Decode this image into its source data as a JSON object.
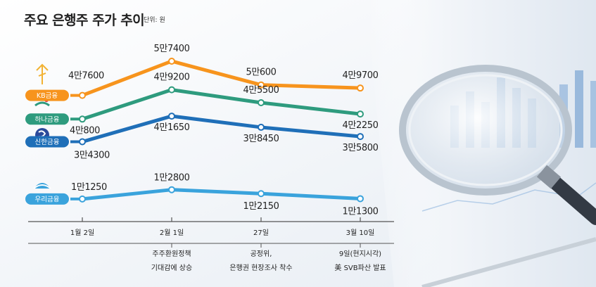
{
  "title": "주요 은행주 주가 추이",
  "unit": "단위: 원",
  "colors": {
    "kb": "#f7941d",
    "hana": "#2e9b7e",
    "shinhan": "#1f6fb8",
    "woori": "#3aa3dc"
  },
  "chart_data": {
    "type": "line",
    "categories": [
      "1월 2일",
      "2월 1일",
      "27일",
      "3월 10일"
    ],
    "series": [
      {
        "name": "KB금융",
        "values": [
          47600,
          57400,
          50600,
          49700
        ],
        "labels": [
          "4만7600",
          "5만7400",
          "5만600",
          "4만9700"
        ]
      },
      {
        "name": "하나금융",
        "values": [
          40800,
          49200,
          45500,
          42250
        ],
        "labels": [
          "4만800",
          "4만9200",
          "4만5500",
          "4만2250"
        ]
      },
      {
        "name": "신한금융",
        "values": [
          34300,
          41650,
          38450,
          35800
        ],
        "labels": [
          "3만4300",
          "4만1650",
          "3만8450",
          "3만5800"
        ]
      },
      {
        "name": "우리금융",
        "values": [
          11250,
          12800,
          12150,
          11300
        ],
        "labels": [
          "1만1250",
          "1만2800",
          "1만2150",
          "1만1300"
        ]
      }
    ],
    "annotations": [
      {
        "category": "2월 1일",
        "lines": [
          "주주환원정책",
          "기대감에 상승"
        ]
      },
      {
        "category": "27일",
        "lines": [
          "공정위,",
          "은행권 현장조사 착수"
        ]
      },
      {
        "category": "3월 10일",
        "lines": [
          "9일(현지시각)",
          "美 SVB파산 발표"
        ]
      }
    ]
  }
}
